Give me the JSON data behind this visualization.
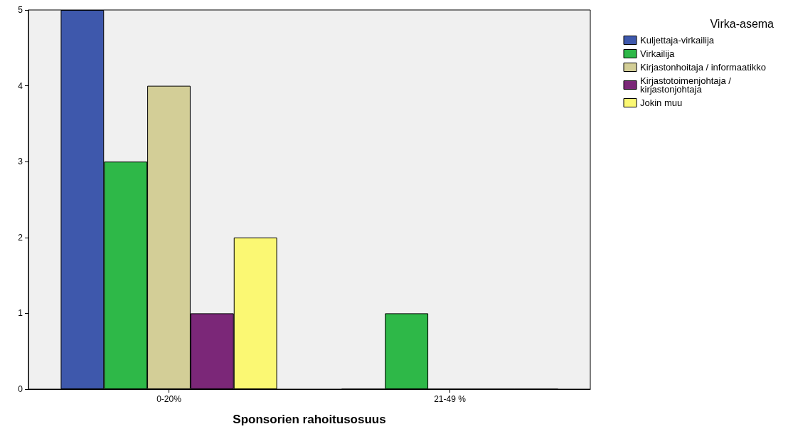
{
  "chart_data": {
    "type": "bar",
    "xlabel": "Sponsorien rahoitusosuus",
    "legend_title": "Virka-asema",
    "categories": [
      "0-20%",
      "21-49 %"
    ],
    "series": [
      {
        "name": "Kuljettaja-virkailija",
        "color": "#3e58ac",
        "values": [
          5,
          0
        ]
      },
      {
        "name": "Virkailija",
        "color": "#2eb848",
        "values": [
          3,
          1
        ]
      },
      {
        "name": "Kirjastonhoitaja / informaatikko",
        "color": "#d3ce97",
        "values": [
          4,
          0
        ]
      },
      {
        "name": "Kirjastotoimenjohtaja / kirjastonjohtaja",
        "color": "#7b2778",
        "values": [
          1,
          0
        ]
      },
      {
        "name": "Jokin muu",
        "color": "#fbf873",
        "values": [
          2,
          0
        ]
      }
    ],
    "ylim": [
      0,
      5
    ],
    "yticks": [
      0,
      1,
      2,
      3,
      4,
      5
    ],
    "grid": false,
    "legend": "top right"
  }
}
